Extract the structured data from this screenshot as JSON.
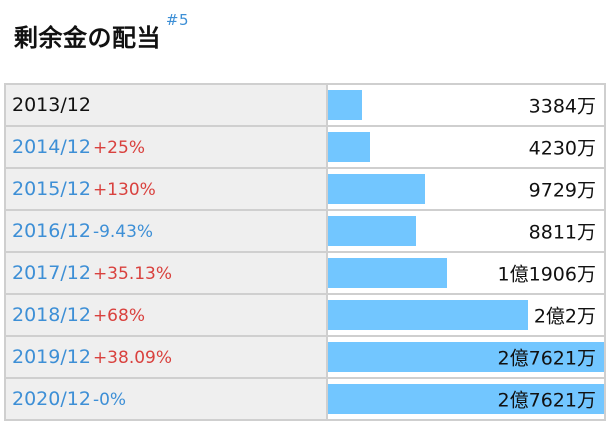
{
  "header": {
    "title": "剰余金の配当",
    "ref": "#5"
  },
  "colors": {
    "bar": "#72c6ff",
    "increase": "#d9413e",
    "decrease": "#3d8fd6",
    "link": "#3d8fd6"
  },
  "rows": [
    {
      "year": "2013/12",
      "change": "",
      "amount": "3384万",
      "value": 3384,
      "linked": false
    },
    {
      "year": "2014/12",
      "change": "+25%",
      "amount": "4230万",
      "value": 4230,
      "linked": true
    },
    {
      "year": "2015/12",
      "change": "+130%",
      "amount": "9729万",
      "value": 9729,
      "linked": true
    },
    {
      "year": "2016/12",
      "change": "-9.43%",
      "amount": "8811万",
      "value": 8811,
      "linked": true
    },
    {
      "year": "2017/12",
      "change": "+35.13%",
      "amount": "1億1906万",
      "value": 11906,
      "linked": true
    },
    {
      "year": "2018/12",
      "change": "+68%",
      "amount": "2億2万",
      "value": 20002,
      "linked": true
    },
    {
      "year": "2019/12",
      "change": "+38.09%",
      "amount": "2億7621万",
      "value": 27621,
      "linked": true
    },
    {
      "year": "2020/12",
      "change": "-0%",
      "amount": "2億7621万",
      "value": 27621,
      "linked": true
    }
  ]
}
